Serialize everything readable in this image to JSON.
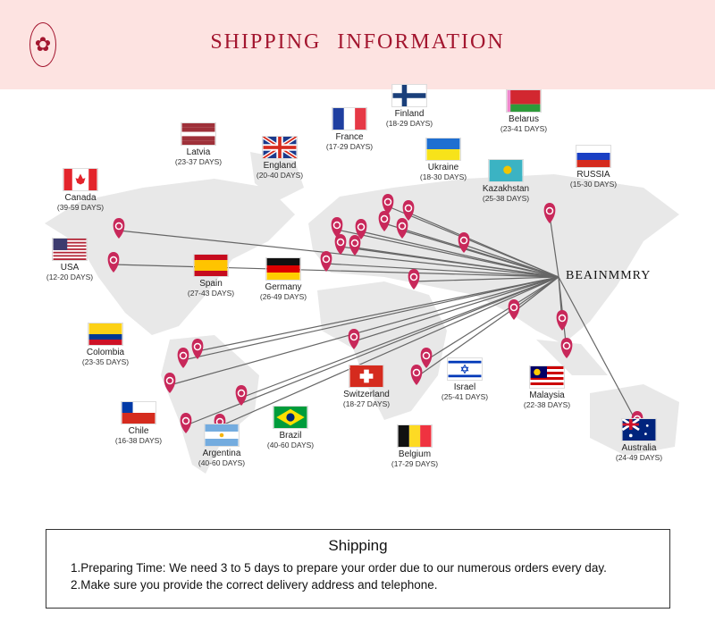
{
  "header": {
    "title": "SHIPPING INFORMATION",
    "logo_icon": "rose-logo-icon"
  },
  "brand": "BEAINMMRY",
  "colors": {
    "header_bg": "#fde3e1",
    "accent": "#a3162f",
    "pin": "#c8285a",
    "land": "#e6e6e6"
  },
  "countries": [
    {
      "name": "Latvia",
      "days": "(23-37 DAYS)",
      "flag": "latvia"
    },
    {
      "name": "England",
      "days": "(20-40 DAYS)",
      "flag": "uk"
    },
    {
      "name": "France",
      "days": "(17-29 DAYS)",
      "flag": "france"
    },
    {
      "name": "Finland",
      "days": "(18-29 DAYS)",
      "flag": "finland"
    },
    {
      "name": "Belarus",
      "days": "(23-41 DAYS)",
      "flag": "belarus"
    },
    {
      "name": "Ukraine",
      "days": "(18-30 DAYS)",
      "flag": "ukraine"
    },
    {
      "name": "Kazakhstan",
      "days": "(25-38 DAYS)",
      "flag": "kazakhstan"
    },
    {
      "name": "RUSSIA",
      "days": "(15-30 DAYS)",
      "flag": "russia"
    },
    {
      "name": "Canada",
      "days": "(39-59 DAYS)",
      "flag": "canada"
    },
    {
      "name": "USA",
      "days": "(12-20 DAYS)",
      "flag": "usa"
    },
    {
      "name": "Spain",
      "days": "(27-43 DAYS)",
      "flag": "spain"
    },
    {
      "name": "Germany",
      "days": "(26-49 DAYS)",
      "flag": "germany"
    },
    {
      "name": "Colombia",
      "days": "(23-35 DAYS)",
      "flag": "colombia"
    },
    {
      "name": "Chile",
      "days": "(16-38 DAYS)",
      "flag": "chile"
    },
    {
      "name": "Argentina",
      "days": "(40-60 DAYS)",
      "flag": "argentina"
    },
    {
      "name": "Brazil",
      "days": "(40-60 DAYS)",
      "flag": "brazil"
    },
    {
      "name": "Switzerland",
      "days": "(18-27 DAYS)",
      "flag": "switzerland"
    },
    {
      "name": "Belgium",
      "days": "(17-29 DAYS)",
      "flag": "belgium"
    },
    {
      "name": "Israel",
      "days": "(25-41 DAYS)",
      "flag": "israel"
    },
    {
      "name": "Malaysia",
      "days": "(22-38 DAYS)",
      "flag": "malaysia"
    },
    {
      "name": "Australia",
      "days": "(24-49 DAYS)",
      "flag": "australia"
    }
  ],
  "shipping": {
    "title": "Shipping",
    "lines": [
      "1.Preparing Time: We need 3 to 5 days to prepare your order due to our numerous orders every day.",
      "2.Make sure you provide the correct delivery address and telephone."
    ]
  }
}
